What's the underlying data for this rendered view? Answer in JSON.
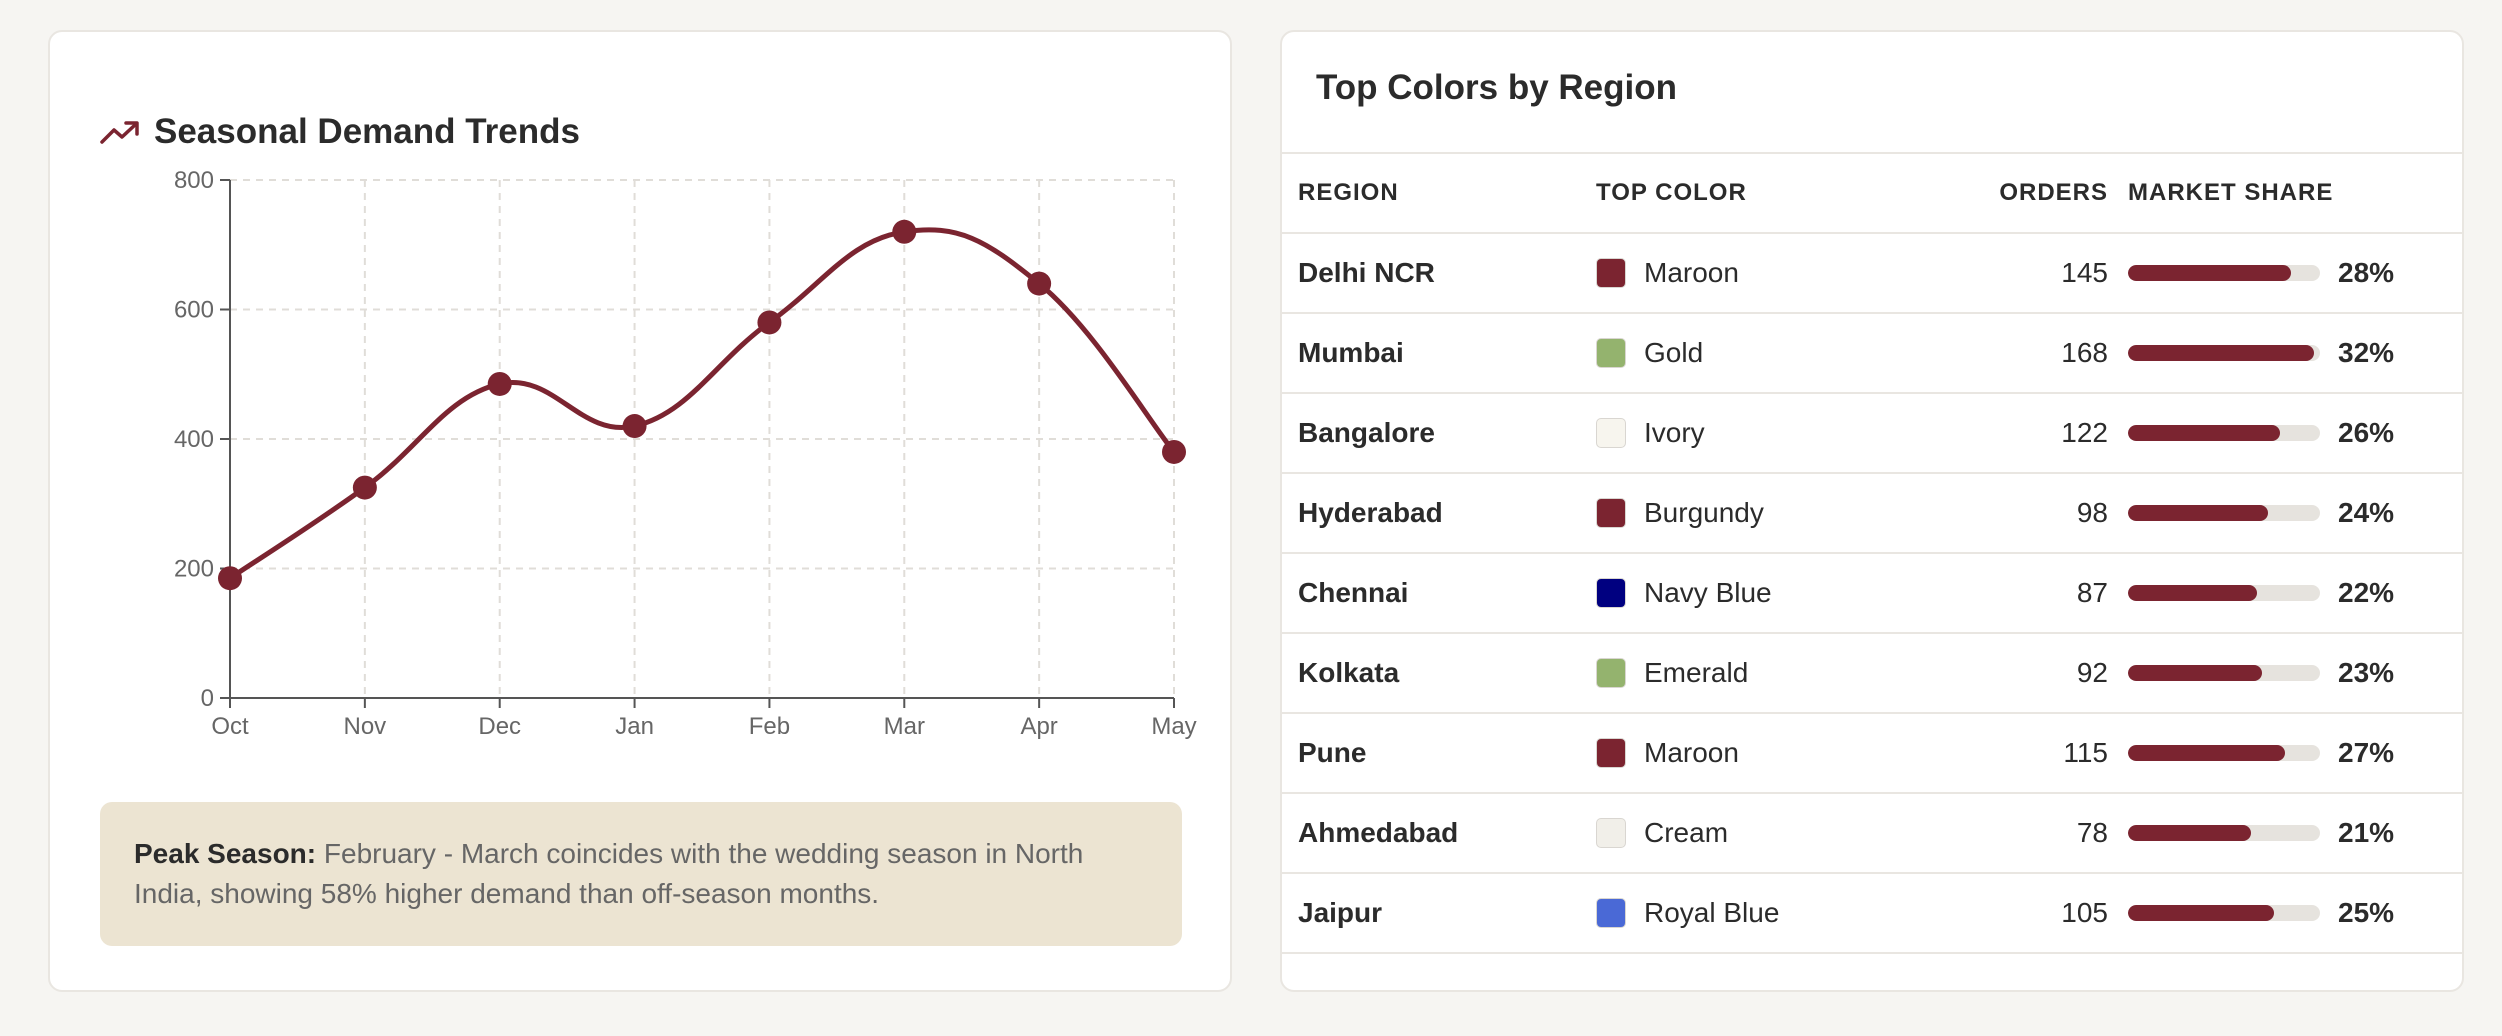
{
  "colors": {
    "accent": "#7b2430",
    "grid": "#e0ddd8",
    "axis": "#555555",
    "note_bg": "#ece4d2"
  },
  "trend_card": {
    "icon": "trending-up-icon",
    "title": "Seasonal Demand Trends",
    "note_label": "Peak Season:",
    "note_text": " February - March coincides with the wedding season in North India, showing 58% higher demand than off-season months."
  },
  "chart_data": {
    "type": "line",
    "title": "Seasonal Demand Trends",
    "xlabel": "",
    "ylabel": "",
    "categories": [
      "Oct",
      "Nov",
      "Dec",
      "Jan",
      "Feb",
      "Mar",
      "Apr",
      "May"
    ],
    "series": [
      {
        "values": [
          185,
          325,
          485,
          420,
          580,
          720,
          640,
          380
        ]
      }
    ],
    "ylim": [
      0,
      800
    ],
    "yticks": [
      "0",
      "200",
      "400",
      "600",
      "800"
    ],
    "grid": true,
    "legend": "none"
  },
  "regions_card": {
    "title": "Top Colors by Region",
    "columns": {
      "region": "REGION",
      "top_color": "TOP COLOR",
      "orders": "ORDERS",
      "market_share": "MARKET SHARE"
    },
    "rows": [
      {
        "region": "Delhi NCR",
        "color": "Maroon",
        "swatch": "#7b2430",
        "orders": "145",
        "share": "28%",
        "share_fraction": 0.85
      },
      {
        "region": "Mumbai",
        "color": "Gold",
        "swatch": "#94b36e",
        "orders": "168",
        "share": "32%",
        "share_fraction": 0.97
      },
      {
        "region": "Bangalore",
        "color": "Ivory",
        "swatch": "#f7f5ee",
        "orders": "122",
        "share": "26%",
        "share_fraction": 0.79
      },
      {
        "region": "Hyderabad",
        "color": "Burgundy",
        "swatch": "#7b2430",
        "orders": "98",
        "share": "24%",
        "share_fraction": 0.73
      },
      {
        "region": "Chennai",
        "color": "Navy Blue",
        "swatch": "#000080",
        "orders": "87",
        "share": "22%",
        "share_fraction": 0.67
      },
      {
        "region": "Kolkata",
        "color": "Emerald",
        "swatch": "#94b36e",
        "orders": "92",
        "share": "23%",
        "share_fraction": 0.7
      },
      {
        "region": "Pune",
        "color": "Maroon",
        "swatch": "#7b2430",
        "orders": "115",
        "share": "27%",
        "share_fraction": 0.82
      },
      {
        "region": "Ahmedabad",
        "color": "Cream",
        "swatch": "#f1efe9",
        "orders": "78",
        "share": "21%",
        "share_fraction": 0.64
      },
      {
        "region": "Jaipur",
        "color": "Royal Blue",
        "swatch": "#4a69d6",
        "orders": "105",
        "share": "25%",
        "share_fraction": 0.76
      }
    ]
  }
}
